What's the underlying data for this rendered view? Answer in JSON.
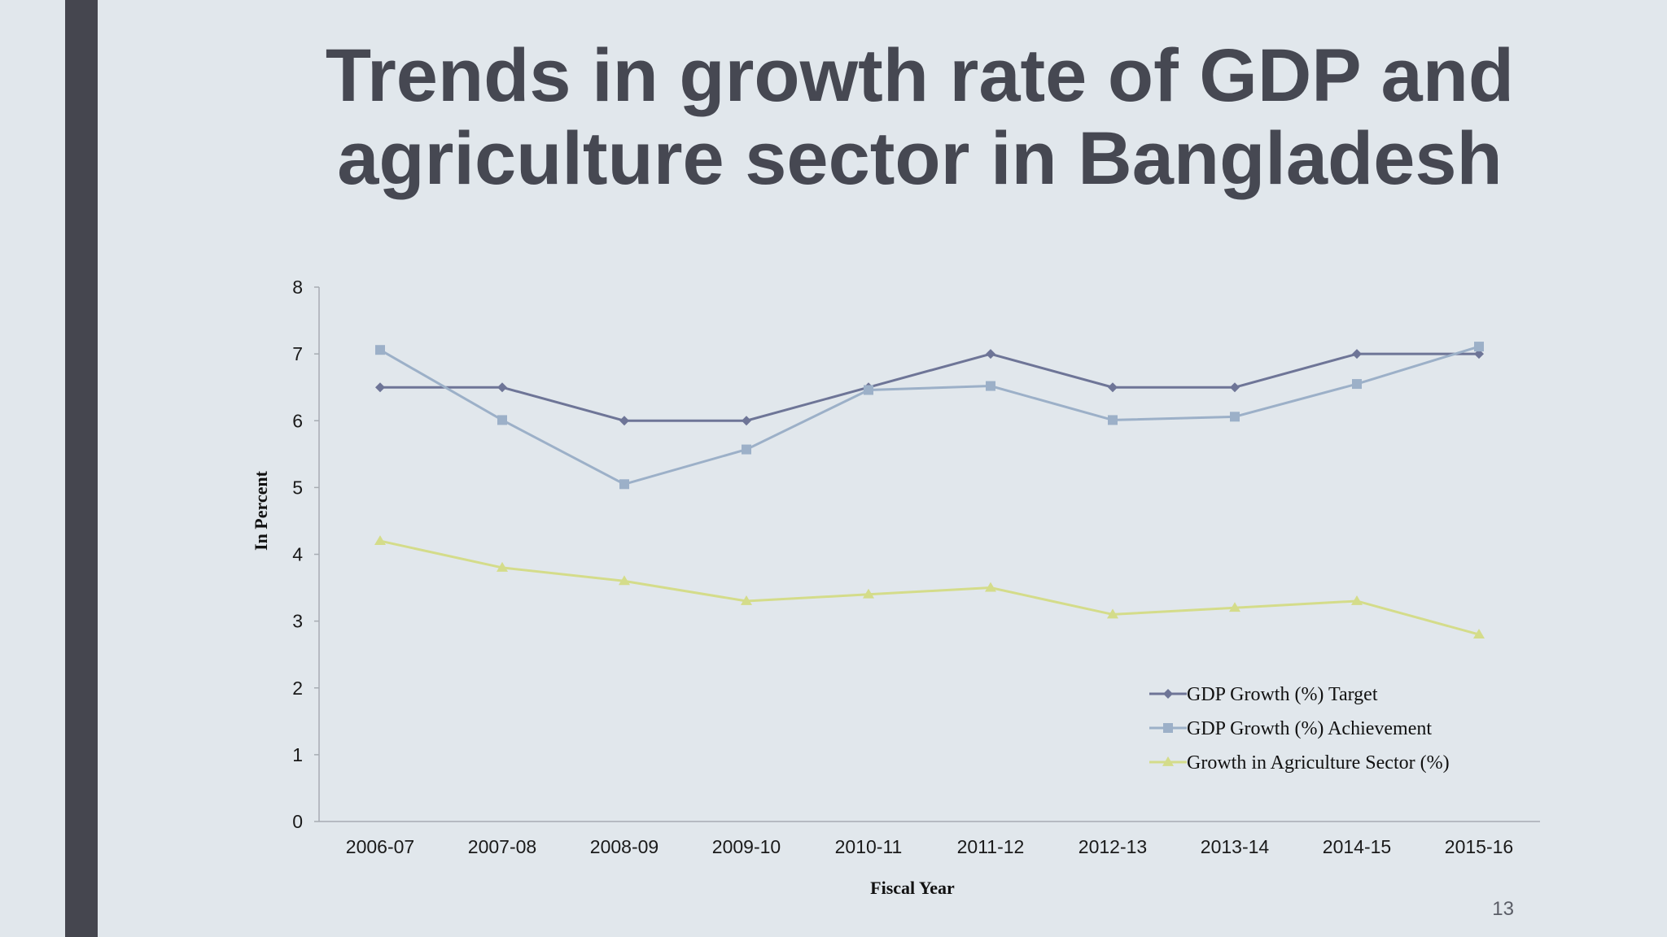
{
  "slide": {
    "title_line1": "Trends in growth rate of GDP and",
    "title_line2": "agriculture sector in Bangladesh",
    "page_number": "13",
    "colors": {
      "background": "#e1e7ec",
      "left_bar": "#45464f",
      "title": "#464852"
    }
  },
  "chart_data": {
    "type": "line",
    "title": "",
    "xlabel": "Fiscal Year",
    "ylabel": "In Percent",
    "categories": [
      "2006-07",
      "2007-08",
      "2008-09",
      "2009-10",
      "2010-11",
      "2011-12",
      "2012-13",
      "2013-14",
      "2014-15",
      "2015-16"
    ],
    "ylim": [
      0,
      8
    ],
    "yticks": [
      0,
      1,
      2,
      3,
      4,
      5,
      6,
      7,
      8
    ],
    "grid": false,
    "legend_position": "bottom-right",
    "series": [
      {
        "name": "GDP Growth (%) Target",
        "color": "#6e7597",
        "marker": "diamond",
        "values": [
          6.5,
          6.5,
          6.0,
          6.0,
          6.5,
          7.0,
          6.5,
          6.5,
          7.0,
          7.0
        ]
      },
      {
        "name": "GDP Growth (%) Achievement",
        "color": "#9cb0c8",
        "marker": "square",
        "values": [
          7.06,
          6.01,
          5.05,
          5.57,
          6.46,
          6.52,
          6.01,
          6.06,
          6.55,
          7.11
        ]
      },
      {
        "name": "Growth in Agriculture Sector (%)",
        "color": "#d4dc8a",
        "marker": "triangle",
        "values": [
          4.2,
          3.8,
          3.6,
          3.3,
          3.4,
          3.5,
          3.1,
          3.2,
          3.3,
          2.8
        ]
      }
    ]
  }
}
